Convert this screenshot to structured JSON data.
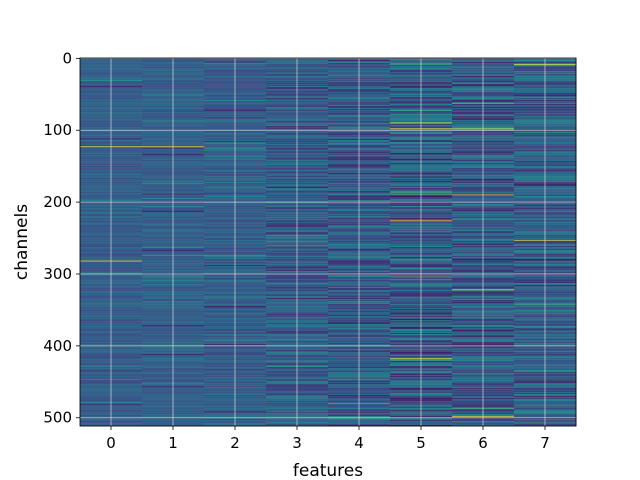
{
  "chart_data": {
    "type": "heatmap",
    "title": "",
    "xlabel": "features",
    "ylabel": "channels",
    "x_categories": [
      0,
      1,
      2,
      3,
      4,
      5,
      6,
      7
    ],
    "xticks": [
      0,
      1,
      2,
      3,
      4,
      5,
      6,
      7
    ],
    "yticks": [
      0,
      100,
      200,
      300,
      400,
      500
    ],
    "xlim": [
      -0.5,
      7.5
    ],
    "ylim": [
      511.5,
      -0.5
    ],
    "y_inverted": true,
    "n_channels": 512,
    "n_features": 8,
    "grid": true,
    "colormap": "viridis",
    "colormap_stops": [
      "#440154",
      "#3b528b",
      "#21918c",
      "#5ec962",
      "#fde725"
    ],
    "bright_rows": [
      {
        "feature": 0,
        "channel": 123
      },
      {
        "feature": 1,
        "channel": 123
      },
      {
        "feature": 0,
        "channel": 282
      },
      {
        "feature": 5,
        "channel": 90
      },
      {
        "feature": 5,
        "channel": 98
      },
      {
        "feature": 5,
        "channel": 226
      },
      {
        "feature": 5,
        "channel": 418
      },
      {
        "feature": 6,
        "channel": 97
      },
      {
        "feature": 6,
        "channel": 190
      },
      {
        "feature": 6,
        "channel": 322
      },
      {
        "feature": 6,
        "channel": 498
      },
      {
        "feature": 7,
        "channel": 9
      },
      {
        "feature": 7,
        "channel": 253
      }
    ]
  }
}
